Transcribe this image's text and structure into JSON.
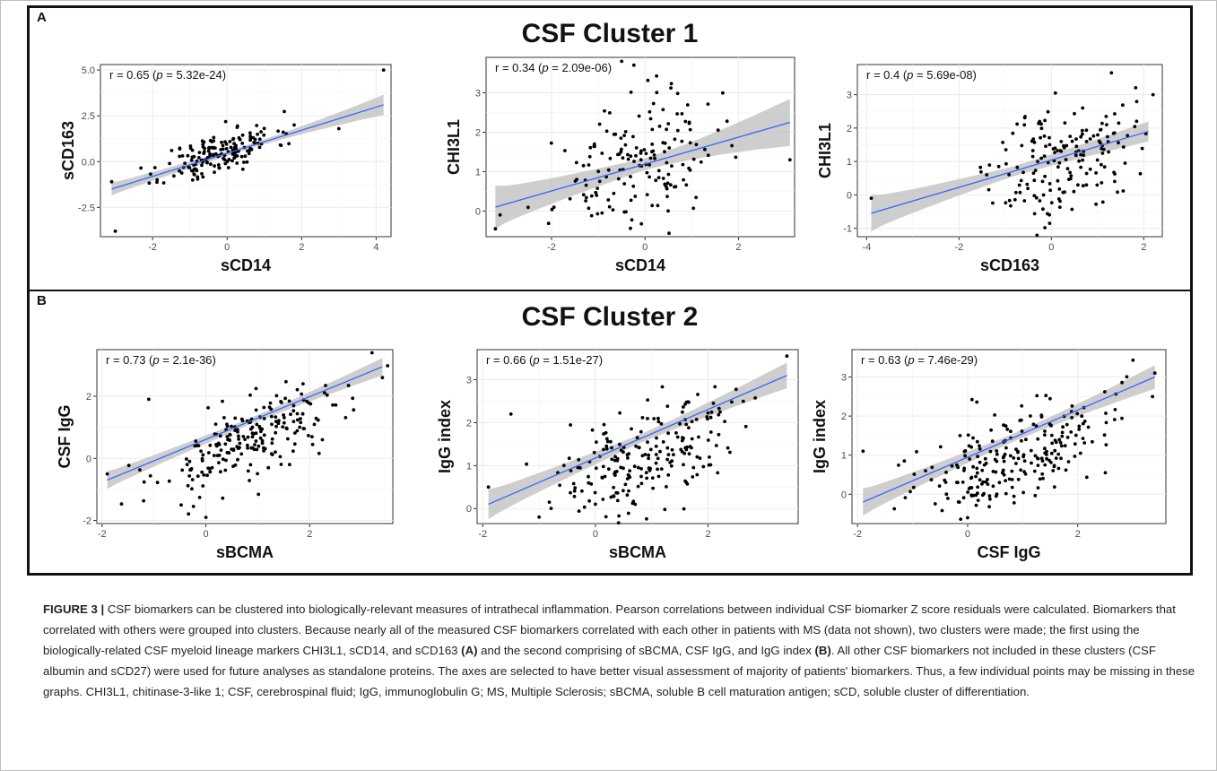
{
  "panels": [
    {
      "letter": "A",
      "title": "CSF Cluster 1"
    },
    {
      "letter": "B",
      "title": "CSF Cluster 2"
    }
  ],
  "caption": {
    "label": "FIGURE 3 |",
    "text_1": " CSF biomarkers can be clustered into biologically-relevant measures of intrathecal inflammation. Pearson correlations between individual CSF biomarker Z score residuals were calculated. Biomarkers that correlated with others were grouped into clusters. Because nearly all of the measured CSF biomarkers correlated with each other in patients with MS (data not shown), two clusters were made; the first using the biologically-related CSF myeloid lineage markers CHI3L1, sCD14, and sCD163 ",
    "ref_a": "(A)",
    "text_2": " and the second comprising of sBCMA, CSF IgG, and IgG index ",
    "ref_b": "(B)",
    "text_3": ". All other CSF biomarkers not included in these clusters (CSF albumin and sCD27) were used for future analyses as standalone proteins. The axes are selected to have better visual assessment of majority of patients' biomarkers. Thus, a few individual points may be missing in these graphs. CHI3L1, chitinase-3-like 1; CSF, cerebrospinal fluid; IgG, immunoglobulin G; MS, Multiple Sclerosis; sBCMA, soluble B cell maturation antigen; sCD, soluble cluster of differentiation."
  },
  "colors": {
    "fit_line": "#3366ff",
    "ribbon": "#bdbdbd",
    "points": "#000000",
    "grid": "#ebebeb"
  },
  "chart_data": [
    {
      "type": "scatter",
      "panel": "A",
      "xlabel": "sCD14",
      "ylabel": "sCD163",
      "xlim": [
        -3.4,
        4.4
      ],
      "ylim": [
        -4.1,
        5.3
      ],
      "xticks": [
        -2,
        0,
        2,
        4
      ],
      "xtick_labels": [
        "-2",
        "0",
        "2",
        "4"
      ],
      "yticks": [
        -2.5,
        0,
        2.5,
        5
      ],
      "ytick_labels": [
        "-2.5",
        "0.0",
        "2.5",
        "5.0"
      ],
      "r_label": "r = 0.65 (",
      "p_label": "p",
      "p_value": " = 5.32e-24)",
      "fit": {
        "x0": -3.1,
        "y0": -1.5,
        "x1": 4.2,
        "y1": 3.1
      },
      "ci_half_width": [
        0.35,
        0.12,
        0.55
      ],
      "sim": {
        "n": 170,
        "cx": -0.2,
        "sx": 0.75,
        "slope": 0.63,
        "intercept": 0.45,
        "noise": 0.6,
        "seed": 11
      },
      "outliers": [
        [
          -3.1,
          -1.1
        ],
        [
          -3.0,
          -3.8
        ],
        [
          4.2,
          5.0
        ],
        [
          3.0,
          1.8
        ],
        [
          1.8,
          2.0
        ]
      ]
    },
    {
      "type": "scatter",
      "panel": "A",
      "xlabel": "sCD14",
      "ylabel": "CHI3L1",
      "xlim": [
        -3.4,
        3.2
      ],
      "ylim": [
        -0.65,
        3.9
      ],
      "xticks": [
        -2,
        0,
        2
      ],
      "xtick_labels": [
        "-2",
        "0",
        "2"
      ],
      "yticks": [
        0,
        1,
        2,
        3
      ],
      "ytick_labels": [
        "0",
        "1",
        "2",
        "3"
      ],
      "r_label": "r = 0.34 (",
      "p_label": "p",
      "p_value": " = 2.09e-06)",
      "fit": {
        "x0": -3.2,
        "y0": 0.1,
        "x1": 3.1,
        "y1": 2.25
      },
      "ci_half_width": [
        0.55,
        0.15,
        0.6
      ],
      "sim": {
        "n": 170,
        "cx": -0.2,
        "sx": 0.85,
        "slope": 0.34,
        "intercept": 1.1,
        "noise": 0.85,
        "seed": 23
      },
      "outliers": [
        [
          -3.2,
          -0.45
        ],
        [
          -3.1,
          -0.1
        ],
        [
          3.1,
          1.3
        ],
        [
          -0.5,
          3.8
        ]
      ]
    },
    {
      "type": "scatter",
      "panel": "A",
      "xlabel": "sCD163",
      "ylabel": "CHI3L1",
      "xlim": [
        -4.2,
        2.4
      ],
      "ylim": [
        -1.25,
        3.9
      ],
      "xticks": [
        -4,
        -2,
        0,
        2
      ],
      "xtick_labels": [
        "-4",
        "-2",
        "0",
        "2"
      ],
      "yticks": [
        -1,
        0,
        1,
        2,
        3
      ],
      "ytick_labels": [
        "-1",
        "0",
        "1",
        "2",
        "3"
      ],
      "r_label": "r = 0.4 (",
      "p_label": "p",
      "p_value": " = 5.69e-08)",
      "fit": {
        "x0": -3.9,
        "y0": -0.55,
        "x1": 2.1,
        "y1": 1.9
      },
      "ci_half_width": [
        0.55,
        0.15,
        0.3
      ],
      "sim": {
        "n": 170,
        "cx": 0.25,
        "sx": 0.75,
        "slope": 0.41,
        "intercept": 1.05,
        "noise": 0.85,
        "seed": 37
      },
      "outliers": [
        [
          -3.9,
          -0.1
        ],
        [
          1.3,
          3.65
        ],
        [
          2.2,
          3.0
        ],
        [
          -1.4,
          0.6
        ]
      ]
    },
    {
      "type": "scatter",
      "panel": "B",
      "xlabel": "sBCMA",
      "ylabel": "CSF IgG",
      "xlim": [
        -2.1,
        3.6
      ],
      "ylim": [
        -2.1,
        3.5
      ],
      "xticks": [
        -2,
        0,
        2
      ],
      "xtick_labels": [
        "-2",
        "0",
        "2"
      ],
      "yticks": [
        -2,
        0,
        2
      ],
      "ytick_labels": [
        "-2",
        "0",
        "2"
      ],
      "r_label": "r = 0.73 (",
      "p_label": "p",
      "p_value": " = 2.1e-36)",
      "fit": {
        "x0": -1.9,
        "y0": -0.7,
        "x1": 3.4,
        "y1": 2.95
      },
      "ci_half_width": [
        0.28,
        0.1,
        0.28
      ],
      "sim": {
        "n": 220,
        "cx": 0.9,
        "sx": 0.95,
        "slope": 0.69,
        "intercept": 0.61,
        "noise": 0.65,
        "seed": 53
      },
      "outliers": [
        [
          -1.9,
          -0.5
        ],
        [
          0.0,
          -1.9
        ],
        [
          3.4,
          2.6
        ],
        [
          -1.1,
          1.9
        ],
        [
          3.2,
          3.4
        ]
      ]
    },
    {
      "type": "scatter",
      "panel": "B",
      "xlabel": "sBCMA",
      "ylabel": "IgG index",
      "xlim": [
        -2.1,
        3.6
      ],
      "ylim": [
        -0.35,
        3.7
      ],
      "xticks": [
        -2,
        0,
        2
      ],
      "xtick_labels": [
        "-2",
        "0",
        "2"
      ],
      "yticks": [
        0,
        1,
        2,
        3
      ],
      "ytick_labels": [
        "0",
        "1",
        "2",
        "3"
      ],
      "r_label": "r = 0.66 (",
      "p_label": "p",
      "p_value": " = 1.51e-27)",
      "fit": {
        "x0": -1.9,
        "y0": 0.1,
        "x1": 3.4,
        "y1": 3.1
      },
      "ci_half_width": [
        0.35,
        0.1,
        0.3
      ],
      "sim": {
        "n": 220,
        "cx": 0.9,
        "sx": 0.95,
        "slope": 0.57,
        "intercept": 1.18,
        "noise": 0.65,
        "seed": 71
      },
      "outliers": [
        [
          -1.9,
          0.5
        ],
        [
          -1.5,
          2.2
        ],
        [
          3.4,
          3.55
        ],
        [
          -1.0,
          -0.2
        ],
        [
          0.0,
          0.1
        ]
      ]
    },
    {
      "type": "scatter",
      "panel": "B",
      "xlabel": "CSF IgG",
      "ylabel": "IgG index",
      "xlim": [
        -2.1,
        3.6
      ],
      "ylim": [
        -0.75,
        3.7
      ],
      "xticks": [
        -2,
        0,
        2
      ],
      "xtick_labels": [
        "-2",
        "0",
        "2"
      ],
      "yticks": [
        0,
        1,
        2,
        3
      ],
      "ytick_labels": [
        "0",
        "1",
        "2",
        "3"
      ],
      "r_label": "r = 0.63 (",
      "p_label": "p",
      "p_value": " = 7.46e-29)",
      "fit": {
        "x0": -1.9,
        "y0": -0.2,
        "x1": 3.4,
        "y1": 3.0
      },
      "ci_half_width": [
        0.35,
        0.1,
        0.3
      ],
      "sim": {
        "n": 240,
        "cx": 0.9,
        "sx": 0.9,
        "slope": 0.6,
        "intercept": 0.95,
        "noise": 0.65,
        "seed": 89
      },
      "outliers": [
        [
          -1.9,
          1.1
        ],
        [
          0.0,
          -0.6
        ],
        [
          3.4,
          3.1
        ],
        [
          2.5,
          0.55
        ]
      ]
    }
  ]
}
